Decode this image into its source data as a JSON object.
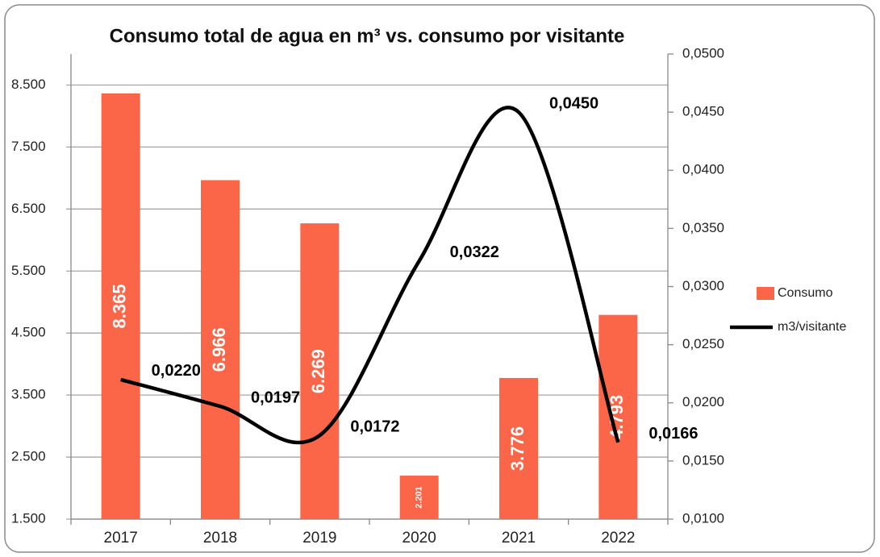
{
  "chart_data": {
    "type": "bar-line",
    "title": "Consumo total de agua en m³ vs. consumo por visitante",
    "categories": [
      "2017",
      "2018",
      "2019",
      "2020",
      "2021",
      "2022"
    ],
    "series": [
      {
        "name": "Consumo",
        "type": "bar",
        "color": "#fb6548",
        "axis": "y",
        "values": [
          8365,
          6966,
          6269,
          2201,
          3776,
          4793
        ],
        "value_labels": [
          "8.365",
          "6.966",
          "6.269",
          "2.201",
          "3.776",
          "4.793"
        ]
      },
      {
        "name": "m3/visitante",
        "type": "line",
        "color": "#000000",
        "axis": "y2",
        "values": [
          0.022,
          0.0197,
          0.0172,
          0.0322,
          0.045,
          0.0166
        ],
        "value_labels": [
          "0,0220",
          "0,0197",
          "0,0172",
          "0,0322",
          "0,0450",
          "0,0166"
        ]
      }
    ],
    "ylim": [
      1500,
      9000
    ],
    "yticks": [
      {
        "value": 1500,
        "label": "1.500"
      },
      {
        "value": 2500,
        "label": "2.500"
      },
      {
        "value": 3500,
        "label": "3.500"
      },
      {
        "value": 4500,
        "label": "4.500"
      },
      {
        "value": 5500,
        "label": "5.500"
      },
      {
        "value": 6500,
        "label": "6.500"
      },
      {
        "value": 7500,
        "label": "7.500"
      },
      {
        "value": 8500,
        "label": "8.500"
      }
    ],
    "y2lim": [
      0.01,
      0.05
    ],
    "y2ticks": [
      {
        "value": 0.01,
        "label": "0,0100"
      },
      {
        "value": 0.015,
        "label": "0,0150"
      },
      {
        "value": 0.02,
        "label": "0,0200"
      },
      {
        "value": 0.025,
        "label": "0,0250"
      },
      {
        "value": 0.03,
        "label": "0,0300"
      },
      {
        "value": 0.035,
        "label": "0,0350"
      },
      {
        "value": 0.04,
        "label": "0,0400"
      },
      {
        "value": 0.045,
        "label": "0,0450"
      },
      {
        "value": 0.05,
        "label": "0,0500"
      }
    ],
    "grid": true,
    "legend": "right"
  }
}
